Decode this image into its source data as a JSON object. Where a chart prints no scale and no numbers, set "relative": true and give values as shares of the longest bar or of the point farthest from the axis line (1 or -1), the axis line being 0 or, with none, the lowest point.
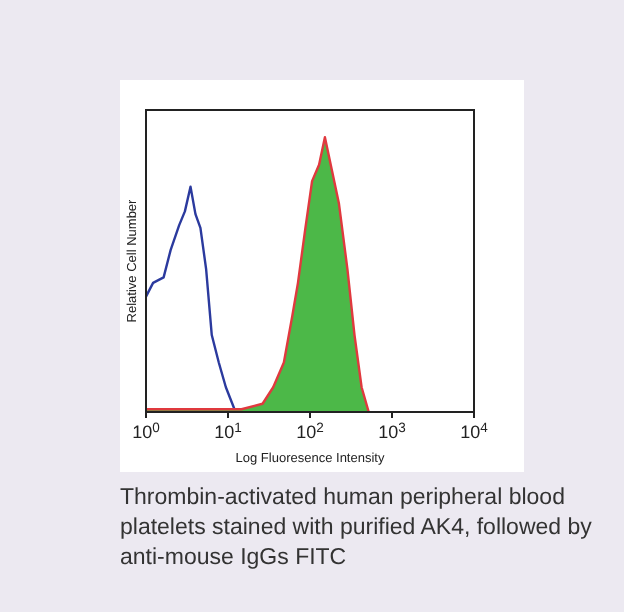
{
  "chart_data": {
    "type": "area",
    "relative": true,
    "log": "x",
    "xlabel": "Log Fluoresence Intensity",
    "ylabel": "Relative Cell Number",
    "xlim": [
      1,
      10000
    ],
    "xticks": [
      {
        "value": 1,
        "label": "10$^{0}$"
      },
      {
        "value": 10,
        "label": "10$^{1}$"
      },
      {
        "value": 100,
        "label": "10$^{2}$"
      },
      {
        "value": 1000,
        "label": "10$^{3}$"
      },
      {
        "value": 10000,
        "label": "10$^{4}$"
      }
    ],
    "grid": false,
    "series": [
      {
        "type": "line",
        "color": "#2b3a9e",
        "x": [
          1,
          1.22,
          1.64,
          2.0,
          2.54,
          2.98,
          3.49,
          4.01,
          4.61,
          5.41,
          6.34,
          7.72,
          9.42,
          12
        ],
        "values": [
          0.42,
          0.47,
          0.49,
          0.59,
          0.68,
          0.73,
          0.82,
          0.72,
          0.67,
          0.52,
          0.28,
          0.18,
          0.09,
          0.01
        ]
      },
      {
        "color": "#4cb848",
        "x": [
          1,
          14.6,
          26.4,
          35.6,
          48,
          60.9,
          71.3,
          87,
          106,
          129,
          152,
          185,
          225,
          286,
          349,
          426,
          520
        ],
        "values": [
          0.01,
          0.01,
          0.03,
          0.09,
          0.18,
          0.35,
          0.47,
          0.66,
          0.84,
          0.9,
          0.99,
          0.88,
          0.76,
          0.52,
          0.28,
          0.09,
          0
        ]
      },
      {
        "type": "line",
        "color": "#e0393e",
        "x": [
          1,
          14.6,
          26.4,
          35.6,
          48,
          60.9,
          71.3,
          87,
          106,
          129,
          152,
          185,
          225,
          286,
          349,
          426,
          520
        ],
        "values": [
          0.01,
          0.01,
          0.03,
          0.09,
          0.18,
          0.35,
          0.47,
          0.66,
          0.84,
          0.9,
          1,
          0.88,
          0.76,
          0.52,
          0.28,
          0.09,
          0
        ]
      }
    ],
    "annotations": [
      "Thrombin-activated human peripheral blood platelets stained with purified AK4, followed by anti-mouse IgGs FITC"
    ]
  }
}
